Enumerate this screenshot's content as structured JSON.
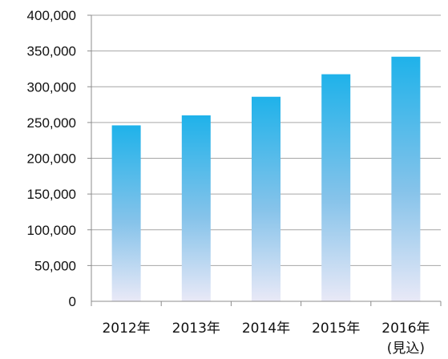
{
  "chart_data": {
    "type": "bar",
    "categories": [
      "2012年",
      "2013年",
      "2014年",
      "2015年",
      "2016年"
    ],
    "category_notes": [
      "",
      "",
      "",
      "",
      "(見込)"
    ],
    "values": [
      246000,
      260000,
      286000,
      317500,
      342000
    ],
    "y_ticks": [
      "0",
      "50,000",
      "100,000",
      "150,000",
      "200,000",
      "250,000",
      "300,000",
      "350,000",
      "400,000"
    ],
    "ylim": [
      0,
      400000
    ],
    "grid": true,
    "legend": "none",
    "title": "",
    "xlabel": "",
    "ylabel": "",
    "colors": {
      "bar_top": "#1fb2ea",
      "bar_mid": "#86c3ea",
      "bar_bottom": "#e9e9f7",
      "grid": "#a6a6a6",
      "axis": "#8c8c8c",
      "text": "#111111"
    }
  }
}
